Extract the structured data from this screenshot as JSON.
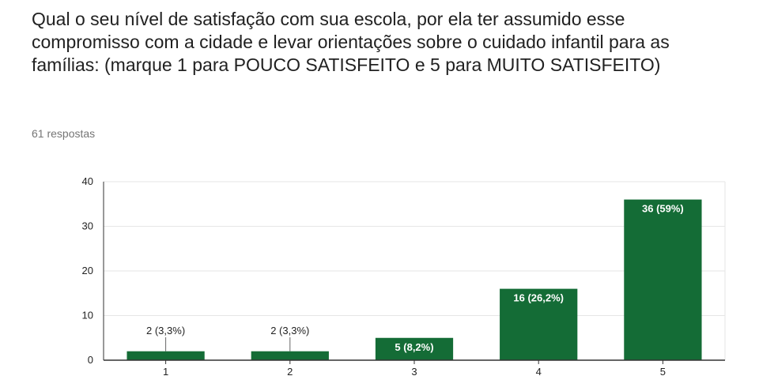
{
  "question": {
    "title": "Qual o seu nível de satisfação com sua escola, por ela ter assumido esse compromisso com a cidade e levar orientações sobre o cuidado infantil para as famílias: (marque 1 para POUCO SATISFEITO e 5 para MUITO SATISFEITO)",
    "responses": "61 respostas"
  },
  "colors": {
    "bar": "#146c36",
    "grid": "#e6e6e6",
    "axis": "#333333",
    "text": "#222222"
  },
  "chart_data": {
    "type": "bar",
    "categories": [
      "1",
      "2",
      "3",
      "4",
      "5"
    ],
    "values": [
      2,
      2,
      5,
      16,
      36
    ],
    "data_labels": [
      "2 (3,3%)",
      "2 (3,3%)",
      "5 (8,2%)",
      "16 (26,2%)",
      "36 (59%)"
    ],
    "title": "",
    "xlabel": "",
    "ylabel": "",
    "ylim": [
      0,
      40
    ],
    "yticks": [
      "0",
      "10",
      "20",
      "30",
      "40"
    ],
    "grid": true,
    "legend": "none"
  }
}
